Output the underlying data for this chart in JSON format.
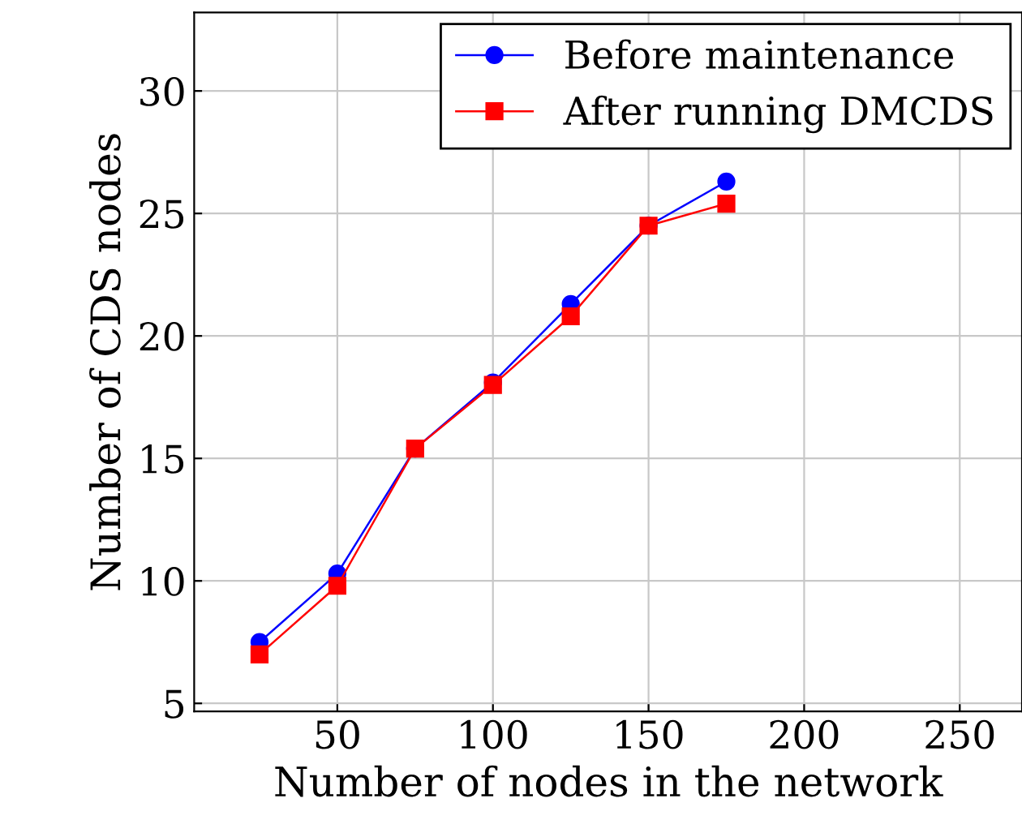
{
  "chart_data": {
    "type": "line",
    "xlabel": "Number of nodes in the network",
    "ylabel": "Number of CDS nodes",
    "x": [
      25,
      50,
      75,
      100,
      125,
      150,
      175
    ],
    "series": [
      {
        "name": "Before maintenance",
        "color": "#0000ff",
        "marker": "circle",
        "values": [
          7.5,
          10.3,
          15.4,
          18.1,
          21.3,
          24.5,
          26.3
        ]
      },
      {
        "name": "After running DMCDS",
        "color": "#ff0000",
        "marker": "square",
        "values": [
          7.0,
          9.8,
          15.4,
          18.0,
          20.8,
          24.5,
          25.4
        ]
      }
    ],
    "xlim": [
      4,
      270
    ],
    "ylim": [
      4.67,
      33.2
    ],
    "xticks": [
      50,
      100,
      150,
      200,
      250
    ],
    "yticks": [
      5,
      10,
      15,
      20,
      25,
      30
    ],
    "grid": true,
    "legend": "top right",
    "line_style": "solid"
  }
}
